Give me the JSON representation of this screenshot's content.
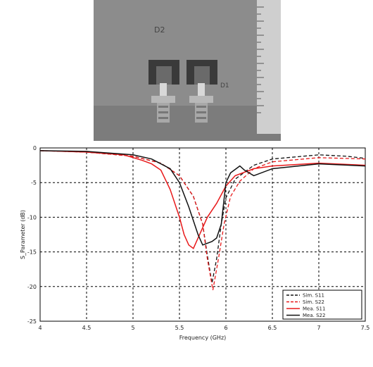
{
  "photo": {
    "board_markings": [
      "D2",
      "D1"
    ],
    "colors": {
      "board": "#8c8c8c",
      "patch": "#3a3a3a",
      "connector": "#b8b8b8",
      "ruler": "#cfcfcf"
    }
  },
  "chart_data": {
    "type": "line",
    "title": "",
    "xlabel": "Frequency (GHz)",
    "ylabel": "S_Parameter (dB)",
    "xlim": [
      4,
      7.5
    ],
    "ylim": [
      -25,
      0
    ],
    "xticks": [
      4,
      4.5,
      5,
      5.5,
      6,
      6.5,
      7,
      7.5
    ],
    "xtick_labels": [
      "4",
      "4.5",
      "5",
      "5.5",
      "6",
      "6.5",
      "7",
      "7.5"
    ],
    "yticks": [
      0,
      -5,
      -10,
      -15,
      -20,
      -25
    ],
    "ytick_labels": [
      "0",
      "-5",
      "-10",
      "-15",
      "-20",
      "-25"
    ],
    "grid": true,
    "legend_position": "bottom-right",
    "series": [
      {
        "name": "Sim. S11",
        "color": "#111111",
        "dash": "dashed",
        "x": [
          4,
          4.5,
          5,
          5.3,
          5.5,
          5.65,
          5.75,
          5.8,
          5.85,
          5.9,
          5.95,
          6,
          6.1,
          6.3,
          6.5,
          7,
          7.3,
          7.5
        ],
        "y": [
          -0.4,
          -0.6,
          -1.2,
          -2.2,
          -4,
          -7,
          -11,
          -15.5,
          -19.5,
          -16,
          -11,
          -7.2,
          -4.5,
          -2.5,
          -1.6,
          -1,
          -1.2,
          -1.5
        ]
      },
      {
        "name": "Sim. S22",
        "color": "#e8191a",
        "dash": "dashed",
        "x": [
          4,
          4.5,
          5,
          5.3,
          5.5,
          5.65,
          5.75,
          5.8,
          5.86,
          5.92,
          5.98,
          6.05,
          6.15,
          6.3,
          6.5,
          7,
          7.5
        ],
        "y": [
          -0.4,
          -0.6,
          -1.2,
          -2.2,
          -4,
          -7,
          -11,
          -16,
          -20.5,
          -16,
          -11,
          -7,
          -4.8,
          -3,
          -2,
          -1.4,
          -1.6
        ]
      },
      {
        "name": "Mea. S11",
        "color": "#e8191a",
        "dash": "solid",
        "x": [
          4,
          4.5,
          4.9,
          5.1,
          5.2,
          5.3,
          5.4,
          5.5,
          5.55,
          5.6,
          5.65,
          5.7,
          5.75,
          5.8,
          5.9,
          6,
          6.1,
          6.3,
          6.5,
          7,
          7.5
        ],
        "y": [
          -0.4,
          -0.6,
          -1,
          -1.8,
          -2.3,
          -3.2,
          -6,
          -10,
          -12.5,
          -14,
          -14.5,
          -13,
          -11.5,
          -10,
          -8,
          -5.5,
          -4,
          -3,
          -2.6,
          -2.2,
          -2.5
        ]
      },
      {
        "name": "Mea. S22",
        "color": "#111111",
        "dash": "solid",
        "x": [
          4,
          4.5,
          5,
          5.2,
          5.4,
          5.5,
          5.6,
          5.7,
          5.75,
          5.85,
          5.9,
          5.95,
          6,
          6.05,
          6.15,
          6.2,
          6.3,
          6.5,
          7,
          7.5
        ],
        "y": [
          -0.4,
          -0.5,
          -1,
          -1.6,
          -3,
          -5,
          -8.5,
          -12.5,
          -14,
          -13.5,
          -13,
          -11,
          -5,
          -3.6,
          -2.6,
          -3.2,
          -4,
          -3,
          -2.3,
          -2.6
        ]
      }
    ]
  }
}
